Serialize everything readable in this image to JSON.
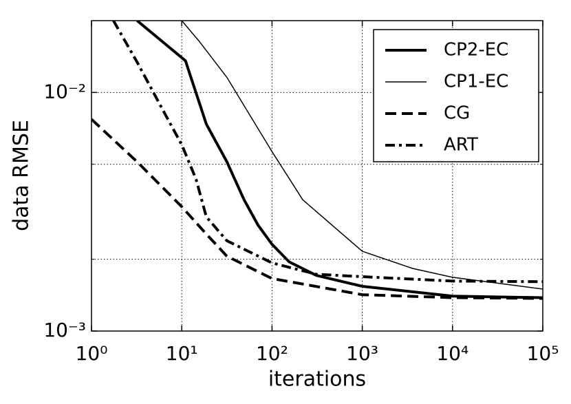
{
  "chart_data": {
    "type": "line",
    "xlabel": "iterations",
    "ylabel": "data RMSE",
    "xscale": "log",
    "yscale": "log",
    "grid": true,
    "xlim": [
      1,
      100000
    ],
    "ylim": [
      0.001,
      0.02
    ],
    "xticks": [
      {
        "value": 1,
        "label": "10⁰"
      },
      {
        "value": 10,
        "label": "10¹"
      },
      {
        "value": 100,
        "label": "10²"
      },
      {
        "value": 1000,
        "label": "10³"
      },
      {
        "value": 10000,
        "label": "10⁴"
      },
      {
        "value": 100000,
        "label": "10⁵"
      }
    ],
    "yticks": [
      {
        "value": 0.001,
        "label": "10⁻³"
      },
      {
        "value": 0.01,
        "label": "10⁻²"
      }
    ],
    "minor_yticks": [
      0.002,
      0.005
    ],
    "legend": "upper right",
    "series": [
      {
        "name": "CP2-EC",
        "color": "#000000",
        "style": "solid",
        "linewidth": 4,
        "x": [
          3.2,
          11,
          18.7,
          31.6,
          49,
          70,
          100,
          155,
          310,
          1000,
          10000,
          100000
        ],
        "values": [
          0.02,
          0.01358,
          0.00737,
          0.00512,
          0.00355,
          0.00278,
          0.00231,
          0.00195,
          0.00171,
          0.00154,
          0.0014,
          0.00138
        ]
      },
      {
        "name": "CP1-EC",
        "color": "#000000",
        "style": "solid",
        "linewidth": 1.5,
        "x": [
          10,
          15.7,
          31.6,
          100,
          219,
          1000,
          3600,
          10000,
          100000
        ],
        "values": [
          0.02,
          0.01634,
          0.01157,
          0.00565,
          0.00355,
          0.00216,
          0.00183,
          0.00168,
          0.0015
        ]
      },
      {
        "name": "CG",
        "color": "#000000",
        "style": "dashed",
        "linewidth": 4,
        "x": [
          1,
          3.2,
          10,
          18.7,
          31.6,
          100,
          1000,
          10000,
          100000
        ],
        "values": [
          0.00772,
          0.00512,
          0.00332,
          0.00255,
          0.00206,
          0.00166,
          0.00142,
          0.00138,
          0.00137
        ]
      },
      {
        "name": "ART",
        "color": "#000000",
        "style": "dashdot",
        "linewidth": 4,
        "x": [
          1.75,
          3.2,
          6.5,
          10,
          14.4,
          18.7,
          31.6,
          100,
          310,
          1000,
          10000,
          100000
        ],
        "values": [
          0.02,
          0.0134,
          0.00814,
          0.00604,
          0.00433,
          0.00301,
          0.00239,
          0.00193,
          0.00173,
          0.00169,
          0.00162,
          0.00161
        ]
      }
    ]
  }
}
